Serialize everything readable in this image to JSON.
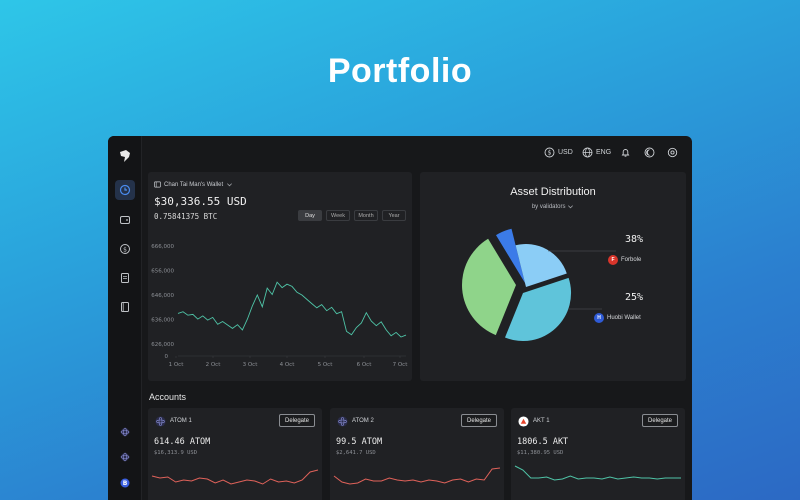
{
  "hero": {
    "title": "Portfolio"
  },
  "topbar": {
    "currency": "USD",
    "language": "ENG"
  },
  "wallet": {
    "name": "Chan Tai Man's Wallet",
    "balance_usd": "$30,336.55 USD",
    "balance_btc": "0.75841375 BTC",
    "ranges": [
      "Day",
      "Week",
      "Month",
      "Year"
    ],
    "selected_range": "Day",
    "y_ticks": [
      "666,000",
      "656,000",
      "646,000",
      "636,000",
      "626,000",
      "0"
    ],
    "x_ticks": [
      "1 Oct",
      "2 Oct",
      "3 Oct",
      "4 Oct",
      "5 Oct",
      "6 Oct",
      "7 Oct"
    ]
  },
  "chart_data": {
    "type": "line",
    "xlabel": "",
    "ylabel": "",
    "x_ticks": [
      "1 Oct",
      "2 Oct",
      "3 Oct",
      "4 Oct",
      "5 Oct",
      "6 Oct",
      "7 Oct"
    ],
    "y": [
      638.5,
      639.2,
      637.8,
      638.1,
      636.2,
      637.5,
      635.8,
      636.9,
      634.1,
      635.2,
      633.8,
      632.4,
      633.9,
      631.8,
      636.2,
      641.5,
      646.0,
      641.2,
      648.8,
      646.2,
      651.2,
      649.0,
      650.4,
      649.5,
      647.1,
      646.0,
      644.2,
      642.5,
      640.8,
      642.1,
      639.6,
      641.0,
      638.4,
      639.2,
      631.2,
      629.8,
      632.8,
      634.6,
      638.8,
      635.4,
      633.5,
      635.1,
      631.8,
      629.4,
      630.8,
      628.9,
      629.7
    ],
    "ylim": [
      622,
      670
    ]
  },
  "distribution": {
    "title": "Asset Distribution",
    "subtitle": "by validators",
    "slices": [
      {
        "name": "green",
        "percent": 37,
        "color": "#8fd48a"
      },
      {
        "name": "blue",
        "percent": 5,
        "color": "#3b7be8"
      },
      {
        "name": "Forbole",
        "percent": 38,
        "color": "#5fc4da"
      },
      {
        "name": "Huobi Wallet",
        "percent": 25,
        "color": "#8bcdf6"
      }
    ],
    "labels": [
      {
        "percent": "38%",
        "name": "Forbole",
        "icon_color": "#d9352b",
        "icon": "F"
      },
      {
        "percent": "25%",
        "name": "Huobi Wallet",
        "icon_color": "#2f5bd6",
        "icon": "H"
      }
    ]
  },
  "accounts": {
    "label": "Accounts",
    "items": [
      {
        "name": "ATOM 1",
        "amount": "614.46 ATOM",
        "usd": "$16,313.9 USD",
        "button": "Delegate",
        "trend_color": "#e0625a",
        "trend": [
          20,
          18,
          19,
          14,
          16,
          15,
          18,
          17,
          13,
          16,
          12,
          14,
          16,
          15,
          12,
          17,
          14,
          15,
          13,
          16,
          24,
          26
        ]
      },
      {
        "name": "ATOM 2",
        "amount": "99.5 ATOM",
        "usd": "$2,641.7 USD",
        "button": "Delegate",
        "trend_color": "#e0625a",
        "trend": [
          20,
          14,
          12,
          13,
          17,
          15,
          15,
          18,
          16,
          15,
          16,
          14,
          16,
          15,
          13,
          16,
          17,
          14,
          17,
          16,
          27,
          28
        ]
      },
      {
        "name": "AKT 1",
        "amount": "1806.5 AKT",
        "usd": "$11,380.95 USD",
        "button": "Delegate",
        "trend_color": "#4fc4a7",
        "trend": [
          30,
          26,
          18,
          18,
          19,
          16,
          17,
          20,
          17,
          18,
          18,
          17,
          19,
          17,
          18,
          19,
          18,
          18,
          17,
          18,
          18,
          18
        ]
      }
    ]
  }
}
